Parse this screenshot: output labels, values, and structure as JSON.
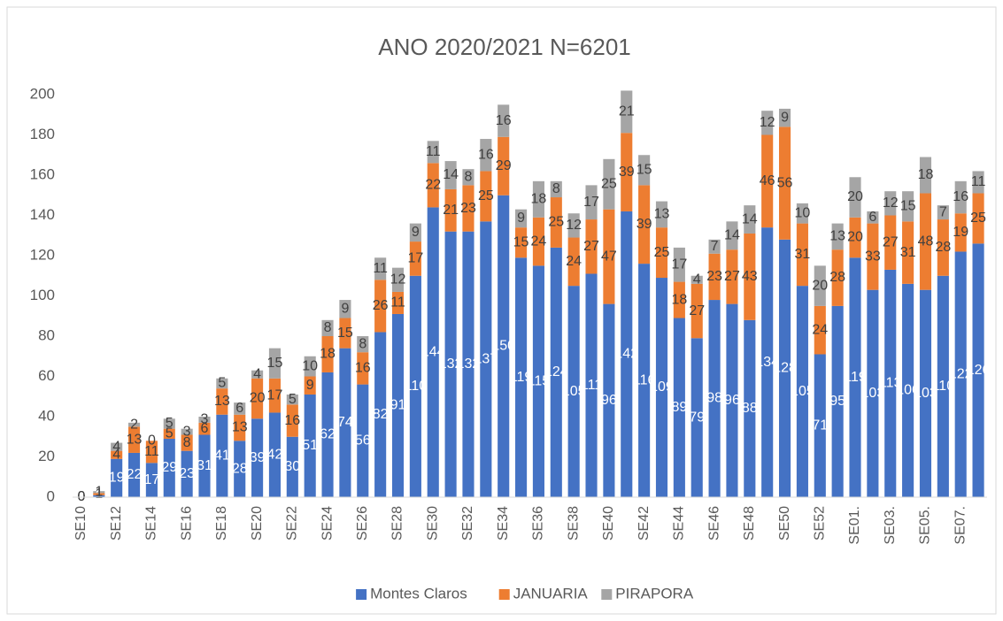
{
  "chart_data": {
    "type": "stacked_bar",
    "title": "ANO 2020/2021 N=6201",
    "categories": [
      "SE10",
      null,
      "SE12",
      null,
      "SE14",
      null,
      "SE16",
      null,
      "SE18",
      null,
      "SE20",
      null,
      "SE22",
      null,
      "SE24",
      null,
      "SE26",
      null,
      "SE28",
      null,
      "SE30",
      null,
      "SE32",
      null,
      "SE34",
      null,
      "SE36",
      null,
      "SE38",
      null,
      "SE40",
      null,
      "SE42",
      null,
      "SE44",
      null,
      "SE46",
      null,
      "SE48",
      null,
      "SE50",
      null,
      "SE52",
      null,
      "SE01.",
      null,
      "SE03.",
      null,
      "SE05.",
      null,
      "SE07.",
      null
    ],
    "series": [
      {
        "name": "Montes Claros",
        "color": "#4472c4",
        "values": [
          0,
          1,
          19,
          22,
          17,
          29,
          23,
          31,
          41,
          28,
          39,
          42,
          30,
          51,
          62,
          74,
          56,
          82,
          91,
          110,
          144,
          132,
          132,
          137,
          150,
          119,
          115,
          124,
          105,
          111,
          96,
          142,
          116,
          109,
          89,
          79,
          98,
          96,
          88,
          134,
          128,
          105,
          71,
          95,
          119,
          103,
          113,
          106,
          103,
          110,
          122,
          126
        ]
      },
      {
        "name": "JANUARIA",
        "color": "#ed7d31",
        "values": [
          0,
          1,
          4,
          13,
          11,
          5,
          8,
          6,
          13,
          13,
          20,
          17,
          16,
          9,
          18,
          15,
          16,
          26,
          11,
          17,
          22,
          21,
          23,
          25,
          29,
          15,
          24,
          25,
          24,
          27,
          47,
          39,
          39,
          25,
          18,
          27,
          23,
          27,
          43,
          46,
          56,
          31,
          24,
          28,
          20,
          33,
          27,
          31,
          48,
          28,
          19,
          25
        ]
      },
      {
        "name": "PIRAPORA",
        "color": "#a5a5a5",
        "values": [
          0,
          1,
          4,
          2,
          0,
          5,
          3,
          3,
          5,
          6,
          4,
          15,
          5,
          10,
          8,
          9,
          8,
          11,
          12,
          9,
          11,
          14,
          8,
          16,
          16,
          9,
          18,
          8,
          12,
          17,
          25,
          21,
          15,
          13,
          17,
          4,
          7,
          14,
          14,
          12,
          9,
          10,
          20,
          13,
          20,
          6,
          12,
          15,
          18,
          7,
          16,
          11
        ]
      }
    ],
    "ylim": [
      0,
      200
    ],
    "yticks": [
      0,
      20,
      40,
      60,
      80,
      100,
      120,
      140,
      160,
      180,
      200
    ],
    "grid": false,
    "legend": "bottom"
  }
}
